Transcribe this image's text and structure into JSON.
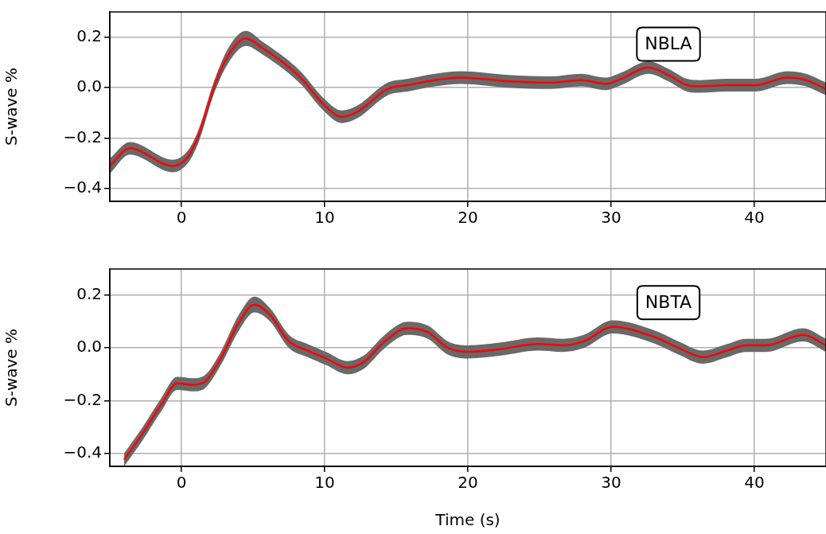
{
  "chart_data": [
    {
      "type": "line",
      "ylabel": "S-wave %",
      "annotations": [
        "NBLA"
      ],
      "xlim": [
        -5,
        45
      ],
      "xticks": [
        0,
        10,
        20,
        30,
        40
      ],
      "ylim": [
        -0.45,
        0.3
      ],
      "yticks": [
        {
          "value": -0.4,
          "label": "−0.4"
        },
        {
          "value": -0.2,
          "label": "−0.2"
        },
        {
          "value": 0,
          "label": "0.0"
        },
        {
          "value": 0.2,
          "label": "0.2"
        }
      ],
      "grid": true,
      "series": [
        {
          "color": "#ff0000",
          "x": [
            -5,
            -3.6,
            -0.6,
            0.5,
            1.2,
            2.3,
            3.3,
            4.5,
            5.7,
            7.2,
            8.4,
            9.9,
            11.2,
            12.3,
            14.4,
            15.8,
            17.7,
            19.5,
            22.9,
            25.8,
            27.9,
            29.6,
            30.7,
            32.6,
            34,
            35.3,
            36.2,
            38.1,
            40.1,
            42.3,
            43.6,
            45
          ],
          "values": [
            -0.31,
            -0.24,
            -0.31,
            -0.27,
            -0.19,
            0.005,
            0.13,
            0.195,
            0.155,
            0.095,
            0.035,
            -0.065,
            -0.115,
            -0.095,
            -0.005,
            0.01,
            0.03,
            0.04,
            0.025,
            0.02,
            0.03,
            0.015,
            0.035,
            0.08,
            0.05,
            0.01,
            0.005,
            0.01,
            0.01,
            0.04,
            0.03,
            -0.005
          ],
          "lower": [
            -0.34,
            -0.265,
            -0.335,
            -0.295,
            -0.215,
            -0.02,
            0.1,
            0.165,
            0.13,
            0.07,
            0.01,
            -0.09,
            -0.14,
            -0.12,
            -0.03,
            -0.015,
            0.005,
            0.015,
            0.0,
            -0.005,
            0.005,
            -0.01,
            0.01,
            0.055,
            0.025,
            -0.015,
            -0.02,
            -0.015,
            -0.015,
            0.015,
            0.005,
            -0.03
          ],
          "upper": [
            -0.28,
            -0.215,
            -0.285,
            -0.245,
            -0.165,
            0.03,
            0.16,
            0.225,
            0.18,
            0.12,
            0.06,
            -0.04,
            -0.09,
            -0.07,
            0.02,
            0.035,
            0.055,
            0.065,
            0.05,
            0.045,
            0.055,
            0.04,
            0.06,
            0.105,
            0.075,
            0.035,
            0.03,
            0.035,
            0.035,
            0.065,
            0.055,
            0.02
          ]
        }
      ]
    },
    {
      "type": "line",
      "xlabel": "Time (s)",
      "ylabel": "S-wave %",
      "annotations": [
        "NBTA"
      ],
      "xlim": [
        -5,
        45
      ],
      "xticks": [
        0,
        10,
        20,
        30,
        40
      ],
      "ylim": [
        -0.45,
        0.3
      ],
      "yticks": [
        {
          "value": -0.4,
          "label": "−0.4"
        },
        {
          "value": -0.2,
          "label": "−0.2"
        },
        {
          "value": 0,
          "label": "0.0"
        },
        {
          "value": 0.2,
          "label": "0.2"
        }
      ],
      "grid": true,
      "series": [
        {
          "color": "#ff0000",
          "x": [
            -4,
            -2.7,
            -1.4,
            -0.3,
            0.8,
            1.6,
            2.7,
            4,
            5.1,
            6.2,
            7.5,
            8.8,
            10.1,
            11.6,
            12.7,
            14.2,
            15.8,
            17.2,
            18.6,
            20,
            22.2,
            24.9,
            26.6,
            28.1,
            30.1,
            33.1,
            34.7,
            36.4,
            38.1,
            39.4,
            40.8,
            43.4,
            45
          ],
          "values": [
            -0.425,
            -0.325,
            -0.215,
            -0.135,
            -0.14,
            -0.13,
            -0.045,
            0.095,
            0.165,
            0.125,
            0.025,
            -0.01,
            -0.04,
            -0.075,
            -0.055,
            0.025,
            0.075,
            0.06,
            0.0,
            -0.015,
            -0.005,
            0.015,
            0.01,
            0.025,
            0.08,
            0.04,
            0.0,
            -0.035,
            -0.01,
            0.01,
            0.01,
            0.05,
            0.01
          ],
          "lower": [
            -0.45,
            -0.35,
            -0.24,
            -0.16,
            -0.165,
            -0.155,
            -0.07,
            0.065,
            0.135,
            0.1,
            0.0,
            -0.035,
            -0.065,
            -0.1,
            -0.08,
            0.0,
            0.05,
            0.035,
            -0.025,
            -0.04,
            -0.03,
            -0.01,
            -0.015,
            0.0,
            0.055,
            0.015,
            -0.025,
            -0.06,
            -0.035,
            -0.015,
            -0.015,
            0.025,
            -0.015
          ],
          "upper": [
            -0.4,
            -0.3,
            -0.19,
            -0.11,
            -0.115,
            -0.105,
            -0.02,
            0.125,
            0.195,
            0.15,
            0.05,
            0.015,
            -0.015,
            -0.05,
            -0.03,
            0.05,
            0.1,
            0.085,
            0.025,
            0.01,
            0.02,
            0.04,
            0.035,
            0.05,
            0.105,
            0.065,
            0.025,
            -0.01,
            0.015,
            0.035,
            0.035,
            0.075,
            0.035
          ]
        }
      ]
    }
  ]
}
